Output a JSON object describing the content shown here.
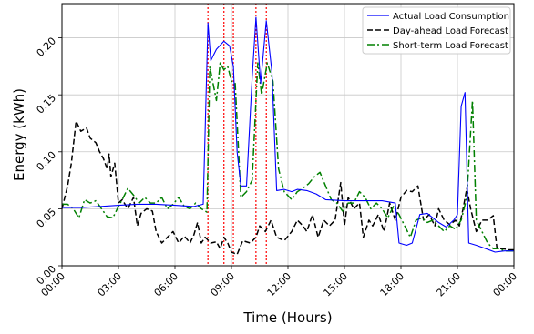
{
  "chart_data": {
    "type": "line",
    "xlabel": "Time (Hours)",
    "ylabel": "Energy (kWh)",
    "xlim": [
      0,
      24
    ],
    "ylim": [
      0,
      0.23
    ],
    "x_ticks": [
      {
        "value": 0,
        "label": "00:00"
      },
      {
        "value": 3,
        "label": "03:00"
      },
      {
        "value": 6,
        "label": "06:00"
      },
      {
        "value": 9,
        "label": "09:00"
      },
      {
        "value": 12,
        "label": "12:00"
      },
      {
        "value": 15,
        "label": "15:00"
      },
      {
        "value": 18,
        "label": "18:00"
      },
      {
        "value": 21,
        "label": "21:00"
      },
      {
        "value": 24,
        "label": "00:00"
      }
    ],
    "y_ticks": [
      {
        "value": 0,
        "label": "0.00"
      },
      {
        "value": 0.05,
        "label": "0.05"
      },
      {
        "value": 0.1,
        "label": "0.10"
      },
      {
        "value": 0.15,
        "label": "0.15"
      },
      {
        "value": 0.2,
        "label": "0.20"
      }
    ],
    "grid": true,
    "legend_position": "top-right",
    "series": [
      {
        "name": "Actual Load Consumption",
        "color": "#0000ff",
        "style": "solid",
        "points": [
          [
            0,
            0.051
          ],
          [
            1,
            0.051
          ],
          [
            2,
            0.052
          ],
          [
            3,
            0.053
          ],
          [
            4,
            0.054
          ],
          [
            5,
            0.054
          ],
          [
            6,
            0.053
          ],
          [
            7,
            0.052
          ],
          [
            7.5,
            0.054
          ],
          [
            7.75,
            0.213
          ],
          [
            7.9,
            0.18
          ],
          [
            8.2,
            0.19
          ],
          [
            8.6,
            0.197
          ],
          [
            8.9,
            0.193
          ],
          [
            9.1,
            0.175
          ],
          [
            9.3,
            0.1
          ],
          [
            9.5,
            0.07
          ],
          [
            9.8,
            0.07
          ],
          [
            10.1,
            0.165
          ],
          [
            10.3,
            0.218
          ],
          [
            10.55,
            0.16
          ],
          [
            10.85,
            0.215
          ],
          [
            11.15,
            0.17
          ],
          [
            11.4,
            0.066
          ],
          [
            11.8,
            0.067
          ],
          [
            12.2,
            0.065
          ],
          [
            12.5,
            0.067
          ],
          [
            13,
            0.066
          ],
          [
            13.5,
            0.063
          ],
          [
            14,
            0.058
          ],
          [
            15,
            0.057
          ],
          [
            16,
            0.057
          ],
          [
            17,
            0.057
          ],
          [
            17.7,
            0.055
          ],
          [
            17.9,
            0.02
          ],
          [
            18.3,
            0.018
          ],
          [
            18.6,
            0.02
          ],
          [
            19,
            0.045
          ],
          [
            19.4,
            0.046
          ],
          [
            20,
            0.038
          ],
          [
            20.4,
            0.034
          ],
          [
            20.8,
            0.04
          ],
          [
            21,
            0.045
          ],
          [
            21.2,
            0.14
          ],
          [
            21.4,
            0.152
          ],
          [
            21.6,
            0.02
          ],
          [
            22,
            0.018
          ],
          [
            22.5,
            0.015
          ],
          [
            23,
            0.012
          ],
          [
            23.5,
            0.013
          ],
          [
            24,
            0.013
          ]
        ]
      },
      {
        "name": "Day-ahead Load Forecast",
        "color": "#000000",
        "style": "dashed",
        "points": [
          [
            0,
            0.05
          ],
          [
            0.3,
            0.07
          ],
          [
            0.5,
            0.09
          ],
          [
            0.75,
            0.127
          ],
          [
            1,
            0.118
          ],
          [
            1.3,
            0.121
          ],
          [
            1.5,
            0.112
          ],
          [
            1.8,
            0.108
          ],
          [
            2,
            0.1
          ],
          [
            2.2,
            0.094
          ],
          [
            2.4,
            0.085
          ],
          [
            2.5,
            0.098
          ],
          [
            2.6,
            0.078
          ],
          [
            2.8,
            0.09
          ],
          [
            3,
            0.055
          ],
          [
            3.2,
            0.058
          ],
          [
            3.5,
            0.05
          ],
          [
            3.8,
            0.06
          ],
          [
            4,
            0.035
          ],
          [
            4.2,
            0.046
          ],
          [
            4.5,
            0.05
          ],
          [
            4.8,
            0.048
          ],
          [
            5,
            0.03
          ],
          [
            5.3,
            0.02
          ],
          [
            5.6,
            0.025
          ],
          [
            5.9,
            0.03
          ],
          [
            6.2,
            0.02
          ],
          [
            6.5,
            0.026
          ],
          [
            6.8,
            0.02
          ],
          [
            7,
            0.027
          ],
          [
            7.2,
            0.038
          ],
          [
            7.4,
            0.02
          ],
          [
            7.6,
            0.025
          ],
          [
            7.9,
            0.02
          ],
          [
            8.2,
            0.021
          ],
          [
            8.4,
            0.015
          ],
          [
            8.6,
            0.025
          ],
          [
            8.8,
            0.02
          ],
          [
            9,
            0.012
          ],
          [
            9.3,
            0.01
          ],
          [
            9.6,
            0.022
          ],
          [
            10,
            0.02
          ],
          [
            10.3,
            0.025
          ],
          [
            10.5,
            0.035
          ],
          [
            10.8,
            0.03
          ],
          [
            11.1,
            0.04
          ],
          [
            11.4,
            0.025
          ],
          [
            11.8,
            0.022
          ],
          [
            12.2,
            0.03
          ],
          [
            12.5,
            0.04
          ],
          [
            12.8,
            0.035
          ],
          [
            13,
            0.03
          ],
          [
            13.3,
            0.045
          ],
          [
            13.6,
            0.025
          ],
          [
            13.9,
            0.04
          ],
          [
            14.2,
            0.035
          ],
          [
            14.5,
            0.04
          ],
          [
            14.8,
            0.073
          ],
          [
            15,
            0.035
          ],
          [
            15.2,
            0.06
          ],
          [
            15.5,
            0.05
          ],
          [
            15.8,
            0.055
          ],
          [
            16,
            0.025
          ],
          [
            16.3,
            0.04
          ],
          [
            16.5,
            0.035
          ],
          [
            16.8,
            0.045
          ],
          [
            17.1,
            0.03
          ],
          [
            17.4,
            0.055
          ],
          [
            17.7,
            0.04
          ],
          [
            18,
            0.06
          ],
          [
            18.3,
            0.066
          ],
          [
            18.6,
            0.065
          ],
          [
            18.9,
            0.07
          ],
          [
            19.2,
            0.04
          ],
          [
            19.5,
            0.045
          ],
          [
            19.8,
            0.035
          ],
          [
            20,
            0.05
          ],
          [
            20.3,
            0.04
          ],
          [
            20.6,
            0.036
          ],
          [
            20.9,
            0.04
          ],
          [
            21.1,
            0.035
          ],
          [
            21.3,
            0.05
          ],
          [
            21.5,
            0.068
          ],
          [
            21.7,
            0.05
          ],
          [
            22,
            0.03
          ],
          [
            22.3,
            0.04
          ],
          [
            22.6,
            0.04
          ],
          [
            22.9,
            0.044
          ],
          [
            23.1,
            0.015
          ],
          [
            23.4,
            0.015
          ],
          [
            23.7,
            0.014
          ],
          [
            24,
            0.014
          ]
        ]
      },
      {
        "name": "Short-term Load Forecast",
        "color": "#008000",
        "style": "dashdot",
        "points": [
          [
            0,
            0.054
          ],
          [
            0.3,
            0.054
          ],
          [
            0.6,
            0.05
          ],
          [
            0.9,
            0.042
          ],
          [
            1.2,
            0.058
          ],
          [
            1.5,
            0.055
          ],
          [
            1.8,
            0.057
          ],
          [
            2.1,
            0.05
          ],
          [
            2.4,
            0.043
          ],
          [
            2.7,
            0.042
          ],
          [
            3,
            0.052
          ],
          [
            3.2,
            0.058
          ],
          [
            3.5,
            0.068
          ],
          [
            3.8,
            0.062
          ],
          [
            4.1,
            0.055
          ],
          [
            4.4,
            0.06
          ],
          [
            4.7,
            0.055
          ],
          [
            5,
            0.055
          ],
          [
            5.3,
            0.06
          ],
          [
            5.6,
            0.05
          ],
          [
            5.9,
            0.054
          ],
          [
            6.2,
            0.06
          ],
          [
            6.5,
            0.052
          ],
          [
            6.8,
            0.05
          ],
          [
            7.1,
            0.055
          ],
          [
            7.4,
            0.05
          ],
          [
            7.7,
            0.047
          ],
          [
            7.85,
            0.175
          ],
          [
            8.0,
            0.162
          ],
          [
            8.2,
            0.145
          ],
          [
            8.4,
            0.178
          ],
          [
            8.6,
            0.172
          ],
          [
            8.8,
            0.175
          ],
          [
            9.0,
            0.162
          ],
          [
            9.2,
            0.16
          ],
          [
            9.5,
            0.06
          ],
          [
            9.8,
            0.065
          ],
          [
            10.1,
            0.075
          ],
          [
            10.4,
            0.178
          ],
          [
            10.6,
            0.15
          ],
          [
            10.9,
            0.178
          ],
          [
            11.2,
            0.162
          ],
          [
            11.5,
            0.085
          ],
          [
            11.8,
            0.065
          ],
          [
            12.2,
            0.058
          ],
          [
            12.5,
            0.065
          ],
          [
            12.8,
            0.068
          ],
          [
            13.1,
            0.072
          ],
          [
            13.4,
            0.078
          ],
          [
            13.7,
            0.082
          ],
          [
            14,
            0.07
          ],
          [
            14.3,
            0.058
          ],
          [
            14.6,
            0.055
          ],
          [
            14.9,
            0.048
          ],
          [
            15.2,
            0.055
          ],
          [
            15.5,
            0.055
          ],
          [
            15.8,
            0.065
          ],
          [
            16.1,
            0.06
          ],
          [
            16.4,
            0.05
          ],
          [
            16.7,
            0.055
          ],
          [
            17,
            0.05
          ],
          [
            17.3,
            0.042
          ],
          [
            17.6,
            0.052
          ],
          [
            17.9,
            0.045
          ],
          [
            18.2,
            0.035
          ],
          [
            18.5,
            0.025
          ],
          [
            18.8,
            0.04
          ],
          [
            19.1,
            0.042
          ],
          [
            19.4,
            0.038
          ],
          [
            19.7,
            0.04
          ],
          [
            20,
            0.035
          ],
          [
            20.3,
            0.03
          ],
          [
            20.6,
            0.035
          ],
          [
            20.9,
            0.032
          ],
          [
            21.2,
            0.04
          ],
          [
            21.5,
            0.06
          ],
          [
            21.8,
            0.145
          ],
          [
            22.0,
            0.04
          ],
          [
            22.3,
            0.03
          ],
          [
            22.6,
            0.02
          ],
          [
            22.9,
            0.015
          ],
          [
            23.2,
            0.015
          ],
          [
            23.5,
            0.013
          ],
          [
            24,
            0.013
          ]
        ]
      }
    ],
    "vertical_markers": {
      "color": "#ff0000",
      "style": "dotted",
      "x": [
        7.75,
        8.6,
        9.1,
        10.3,
        10.85
      ]
    }
  }
}
